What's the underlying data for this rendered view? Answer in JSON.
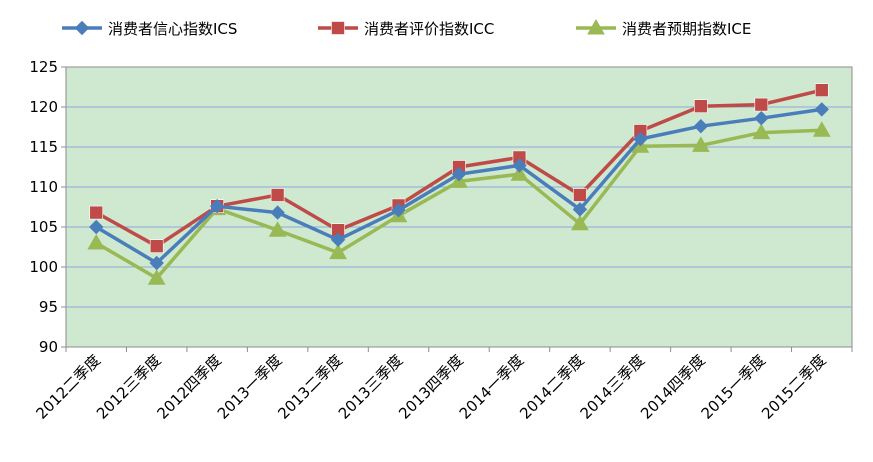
{
  "chart_data": {
    "type": "line",
    "title": "",
    "xlabel": "",
    "ylabel": "",
    "categories": [
      "2012二季度",
      "2012三季度",
      "2012四季度",
      "2013一季度",
      "2013二季度",
      "2013三季度",
      "2013四季度",
      "2014一季度",
      "2014二季度",
      "2014三季度",
      "2014四季度",
      "2015一季度",
      "2015二季度"
    ],
    "ylim": [
      90,
      125
    ],
    "yticks": [
      90,
      95,
      100,
      105,
      110,
      115,
      120,
      125
    ],
    "grid": true,
    "legend": "top",
    "plot_background": "#cfe8d0",
    "series": [
      {
        "name": "消费者信心指数ICS",
        "color": "#4a7ebb",
        "marker": "diamond",
        "values": [
          105.0,
          100.5,
          107.6,
          106.8,
          103.4,
          107.1,
          111.6,
          112.7,
          107.2,
          116.0,
          117.6,
          118.6,
          119.7
        ]
      },
      {
        "name": "消费者评价指数ICC",
        "color": "#be4b48",
        "marker": "square",
        "values": [
          106.8,
          102.6,
          107.6,
          109.0,
          104.6,
          107.7,
          112.5,
          113.7,
          109.0,
          117.0,
          120.1,
          120.3,
          122.1
        ]
      },
      {
        "name": "消费者预期指数ICE",
        "color": "#98b954",
        "marker": "triangle",
        "values": [
          103.0,
          98.6,
          107.3,
          104.6,
          101.8,
          106.4,
          110.7,
          111.6,
          105.4,
          115.1,
          115.2,
          116.8,
          117.1
        ]
      }
    ]
  }
}
